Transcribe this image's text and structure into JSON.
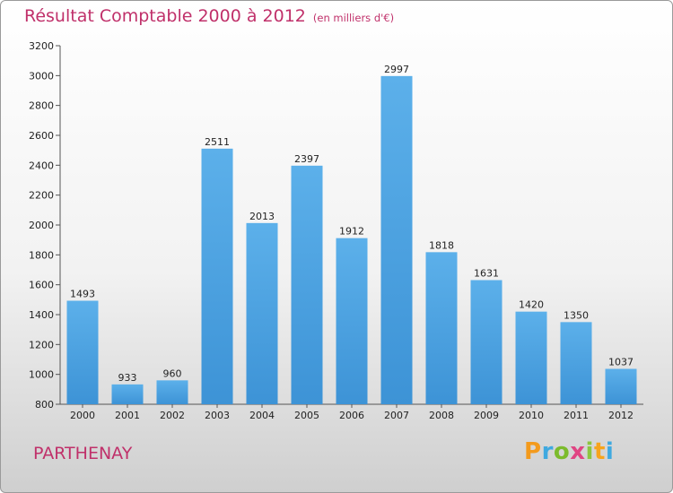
{
  "title": "Résultat Comptable 2000 à 2012",
  "subtitle": "(en milliers d'€)",
  "commune": "PARTHENAY",
  "logo": {
    "p": "P",
    "r": "r",
    "o": "o",
    "x": "x",
    "i1": "i",
    "t": "t",
    "i2": "i"
  },
  "colors": {
    "bar": "#3d93d6",
    "bar_light": "#5cb0ea",
    "title": "#c0306a",
    "axis": "#555555"
  },
  "chart_data": {
    "type": "bar",
    "title": "Résultat Comptable 2000 à 2012",
    "subtitle": "(en milliers d'€)",
    "categories": [
      "2000",
      "2001",
      "2002",
      "2003",
      "2004",
      "2005",
      "2006",
      "2007",
      "2008",
      "2009",
      "2010",
      "2011",
      "2012"
    ],
    "values": [
      1493,
      933,
      960,
      2511,
      2013,
      2397,
      1912,
      2997,
      1818,
      1631,
      1420,
      1350,
      1037
    ],
    "value_labels": [
      "1493",
      "933",
      "960",
      "2511",
      "2013",
      "2397",
      "1912",
      "2997",
      "1818",
      "1631",
      "1420",
      "1350",
      "1037"
    ],
    "ylim": [
      800,
      3200
    ],
    "yticks": [
      800,
      1000,
      1200,
      1400,
      1600,
      1800,
      2000,
      2200,
      2400,
      2600,
      2800,
      3000,
      3200
    ],
    "grid": false,
    "xlabel": "",
    "ylabel": ""
  }
}
